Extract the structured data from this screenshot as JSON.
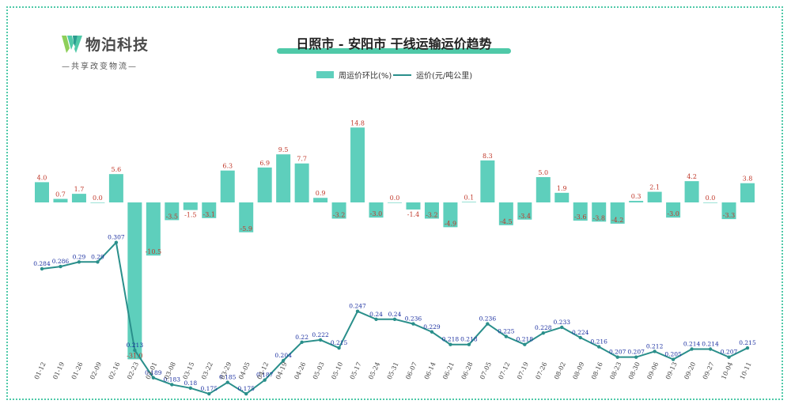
{
  "brand": {
    "name": "物泊科技",
    "slogan": "—共享改变物流—"
  },
  "colors": {
    "frame": "#4fc9a8",
    "bar": "#5ecfbc",
    "line": "#2a8f8b",
    "bar_label": "#c0392b",
    "line_label": "#1a2fa0"
  },
  "chart_data": {
    "type": "bar",
    "title": "日照市 - 安阳市 干线运输运价趋势",
    "legend_position": "top-center",
    "grid": false,
    "categories": [
      "01-12",
      "01-19",
      "01-26",
      "02-09",
      "02-16",
      "02-23",
      "03-01",
      "03-08",
      "03-15",
      "03-22",
      "03-29",
      "04-05",
      "04-12",
      "04-19",
      "04-26",
      "05-03",
      "05-10",
      "05-17",
      "05-24",
      "05-31",
      "06-07",
      "06-14",
      "06-21",
      "06-28",
      "07-05",
      "07-12",
      "07-19",
      "07-26",
      "08-02",
      "08-09",
      "08-16",
      "08-23",
      "08-30",
      "09-06",
      "09-13",
      "09-20",
      "09-27",
      "10-04",
      "10-11"
    ],
    "series": [
      {
        "name": "周运价环比(%)",
        "type": "bar",
        "values": [
          4.0,
          0.7,
          1.7,
          0.0,
          5.6,
          -31.0,
          -10.5,
          -3.5,
          -1.5,
          -3.1,
          6.3,
          -5.9,
          6.9,
          9.5,
          7.7,
          0.9,
          -3.2,
          14.8,
          -3.0,
          0.0,
          -1.4,
          -3.2,
          -4.9,
          0.1,
          8.3,
          -4.5,
          -3.4,
          5.0,
          1.9,
          -3.6,
          -3.8,
          -4.2,
          0.3,
          2.1,
          -3.0,
          4.2,
          0.0,
          -3.3,
          3.8
        ],
        "labels": [
          "4.0",
          "0.7",
          "1.7",
          "0.0",
          "5.6",
          "-31.0",
          "-10.5",
          "-3.5",
          "-1.5",
          "-3.1",
          "6.3",
          "-5.9",
          "6.9",
          "9.5",
          "7.7",
          "0.9",
          "-3.2",
          "14.8",
          "-3.0",
          "0.0",
          "-1.4",
          "-3.2",
          "-4.9",
          "0.1",
          "8.3",
          "-4.5",
          "-3.4",
          "5.0",
          "1.9",
          "-3.6",
          "-3.8",
          "-4.2",
          "0.3",
          "2.1",
          "-3.0",
          "4.2",
          "0.0",
          "-3.3",
          "3.8"
        ]
      },
      {
        "name": "运价(元/吨公里)",
        "type": "line",
        "values": [
          0.284,
          0.286,
          0.29,
          0.29,
          0.307,
          0.213,
          0.189,
          0.183,
          0.18,
          0.175,
          0.185,
          0.175,
          0.187,
          0.204,
          0.22,
          0.222,
          0.215,
          0.247,
          0.24,
          0.24,
          0.236,
          0.229,
          0.218,
          0.218,
          0.236,
          0.225,
          0.218,
          0.228,
          0.233,
          0.224,
          0.216,
          0.207,
          0.207,
          0.212,
          0.205,
          0.214,
          0.214,
          0.207,
          0.215
        ],
        "labels": [
          "0.284",
          "0.286",
          "0.29",
          "0.29",
          "0.307",
          "0.213",
          "0.189",
          "0.183",
          "0.18",
          "0.175",
          "0.185",
          "0.175",
          "0.187",
          "0.204",
          "0.22",
          "0.222",
          "0.215",
          "0.247",
          "0.24",
          "0.24",
          "0.236",
          "0.229",
          "0.218",
          "0.218",
          "0.236",
          "0.225",
          "0.218",
          "0.228",
          "0.233",
          "0.224",
          "0.216",
          "0.207",
          "0.207",
          "0.212",
          "0.205",
          "0.214",
          "0.214",
          "0.207",
          "0.215"
        ]
      }
    ]
  }
}
